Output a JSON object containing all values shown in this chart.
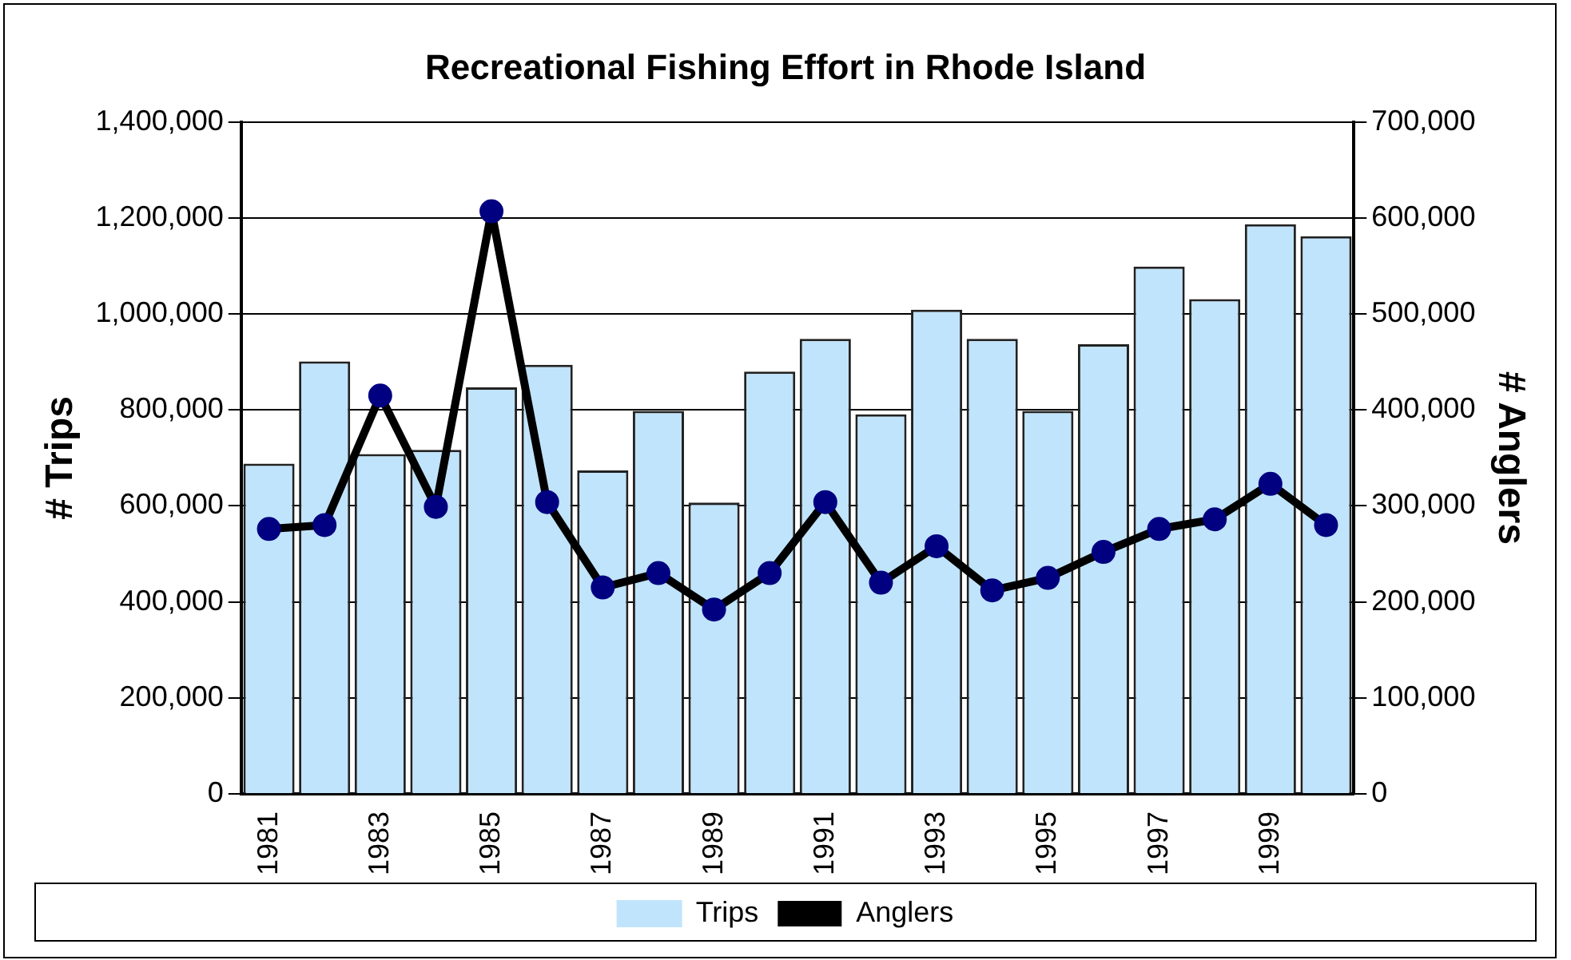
{
  "chart_data": {
    "type": "bar",
    "title": "Recreational Fishing Effort in Rhode Island",
    "ylabel": "# Trips",
    "y2label": "# Anglers",
    "categories": [
      "1981",
      null,
      "1983",
      null,
      "1985",
      null,
      "1987",
      null,
      "1989",
      null,
      "1991",
      null,
      "1993",
      null,
      "1995",
      null,
      "1997",
      null,
      "1999",
      null
    ],
    "series": [
      {
        "name": "Trips",
        "color": "#c0e4fc",
        "values": [
          688000,
          901000,
          708000,
          717000,
          847000,
          894000,
          674000,
          798000,
          607000,
          880000,
          948000,
          791000,
          1009000,
          948000,
          798000,
          937000,
          1099000,
          1031000,
          1187000,
          1162000
        ]
      },
      {
        "name": "Anglers",
        "type": "line",
        "axis": "y2",
        "color": "#000000",
        "values": [
          276000,
          280000,
          415000,
          299000,
          607000,
          304000,
          215000,
          230000,
          192000,
          230000,
          304000,
          220000,
          258000,
          212000,
          225000,
          252000,
          276000,
          286000,
          323000,
          280000
        ]
      }
    ],
    "ylim": [
      0,
      1400000
    ],
    "yticks": [
      0,
      {
        "value": 200000,
        "label": "200,000"
      },
      {
        "value": 400000,
        "label": "400,000"
      },
      {
        "value": 600000,
        "label": "600,000"
      },
      {
        "value": 800000,
        "label": "800,000"
      },
      {
        "value": 1000000,
        "label": "1,000,000"
      },
      {
        "value": 1200000,
        "label": "1,200,000"
      },
      {
        "value": 1400000,
        "label": "1,400,000"
      }
    ],
    "y2lim": [
      0,
      700000
    ],
    "y2ticks": [
      0,
      {
        "value": 100000,
        "label": "100,000"
      },
      {
        "value": 200000,
        "label": "200,000"
      },
      {
        "value": 300000,
        "label": "300,000"
      },
      {
        "value": 400000,
        "label": "400,000"
      },
      {
        "value": 500000,
        "label": "500,000"
      },
      {
        "value": 600000,
        "label": "600,000"
      },
      {
        "value": 700000,
        "label": "700,000"
      }
    ],
    "grid": "y",
    "legend": "bottom",
    "marker": "circle",
    "line_style": "solid"
  }
}
